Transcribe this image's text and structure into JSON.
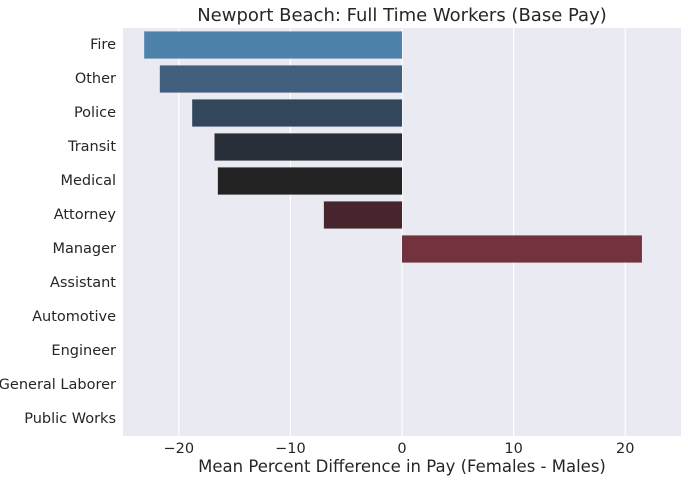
{
  "chart_data": {
    "type": "bar",
    "orientation": "horizontal",
    "title": "Newport Beach: Full Time Workers (Base Pay)",
    "xlabel": "Mean Percent Difference in Pay (Females - Males)",
    "ylabel": "",
    "xlim": [
      -25,
      25
    ],
    "xticks": [
      -20,
      -10,
      0,
      10,
      20
    ],
    "xtick_labels": [
      "−20",
      "−10",
      "0",
      "10",
      "20"
    ],
    "grid": true,
    "categories": [
      "Fire",
      "Other",
      "Police",
      "Transit",
      "Medical",
      "Attorney",
      "Manager",
      "Assistant",
      "Automotive",
      "Engineer",
      "General Laborer",
      "Public Works"
    ],
    "values": [
      -23.1,
      -21.7,
      -18.8,
      -16.8,
      -16.5,
      -7.0,
      21.5,
      0,
      0,
      0,
      0,
      0
    ],
    "colors": [
      "#4d82ab",
      "#425f7d",
      "#33475c",
      "#282f38",
      "#222222",
      "#46252c",
      "#73333d",
      "#6b2f38",
      "#6b2f38",
      "#6b2f38",
      "#6b2f38",
      "#6b2f38"
    ],
    "background": "#eaeaf2",
    "grid_color": "#ffffff"
  }
}
